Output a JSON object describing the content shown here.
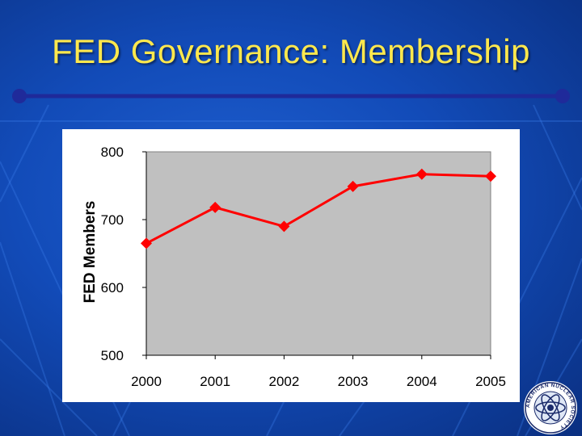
{
  "slide": {
    "title": "FED Governance: Membership",
    "logo_text": "AMERICAN NUCLEAR SOCIETY"
  },
  "colors": {
    "title": "#ffe84d",
    "accent_rule": "#1f2a9a",
    "plot_bg": "#c0c0c0",
    "series": "#ff0000"
  },
  "icons": {
    "logo": "ans-atom-logo"
  },
  "chart_data": {
    "type": "line",
    "title": "",
    "xlabel": "",
    "ylabel": "FED Members",
    "categories": [
      "2000",
      "2001",
      "2002",
      "2003",
      "2004",
      "2005"
    ],
    "series": [
      {
        "values": [
          665,
          718,
          690,
          749,
          767,
          764
        ]
      }
    ],
    "ylim": [
      500,
      800
    ],
    "yticks": [
      "500",
      "600",
      "700",
      "800"
    ],
    "grid": false,
    "legend": "none",
    "marker": "diamond"
  }
}
